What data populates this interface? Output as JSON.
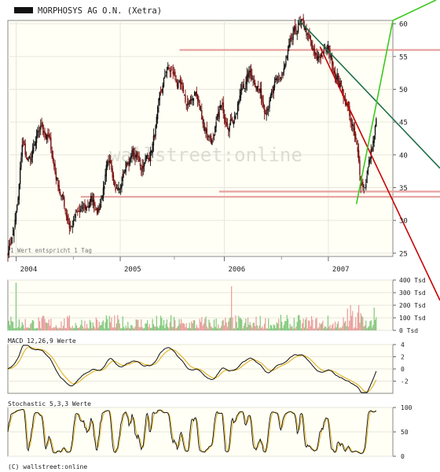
{
  "chart_data": [
    {
      "type": "line",
      "title": "MORPHOSYS AG O.N. (Xetra)",
      "subtitle": "1 Wert entspricht 1 Tag",
      "watermark": "wallstreet:online",
      "x_tick_labels": [
        "2004",
        "2005",
        "2006",
        "2007"
      ],
      "y_tick_labels": [
        "25",
        "30",
        "35",
        "40",
        "45",
        "50",
        "55",
        "60"
      ],
      "ylim": [
        24.5,
        60.5
      ],
      "grid": true,
      "series_points": {
        "x": [
          2003.92,
          2003.97,
          2004.02,
          2004.06,
          2004.12,
          2004.18,
          2004.25,
          2004.32,
          2004.38,
          2004.45,
          2004.52,
          2004.58,
          2004.65,
          2004.72,
          2004.8,
          2004.87,
          2004.94,
          2005.0,
          2005.05,
          2005.12,
          2005.2,
          2005.28,
          2005.33,
          2005.38,
          2005.45,
          2005.52,
          2005.6,
          2005.66,
          2005.72,
          2005.76,
          2005.82,
          2005.9,
          2005.96,
          2006.0,
          2006.06,
          2006.12,
          2006.18,
          2006.25,
          2006.32,
          2006.38,
          2006.45,
          2006.52,
          2006.58,
          2006.65,
          2006.72,
          2006.78,
          2006.84,
          2006.88,
          2006.94,
          2007.0,
          2007.06,
          2007.12,
          2007.18,
          2007.22,
          2007.27,
          2007.31,
          2007.35,
          2007.38,
          2007.42,
          2007.46
        ],
        "y": [
          25.5,
          28.0,
          33.0,
          42.0,
          38.5,
          41.0,
          44.5,
          42.0,
          37.0,
          33.0,
          29.0,
          30.5,
          31.5,
          33.0,
          32.0,
          38.0,
          36.5,
          35.0,
          38.5,
          40.0,
          38.5,
          40.0,
          43.0,
          48.0,
          53.0,
          52.0,
          49.0,
          47.0,
          50.0,
          47.0,
          44.0,
          42.0,
          47.0,
          46.0,
          45.5,
          47.0,
          50.5,
          52.5,
          51.0,
          47.5,
          49.0,
          51.0,
          53.0,
          57.0,
          59.5,
          59.0,
          56.0,
          54.0,
          55.5,
          56.0,
          53.0,
          50.5,
          48.0,
          45.0,
          41.0,
          36.0,
          35.5,
          38.0,
          41.0,
          45.0
        ]
      },
      "horizontal_lines": [
        56.0,
        34.4,
        33.6
      ],
      "trend_lines": [
        {
          "color": "#c80000",
          "x": [
            2006.92,
            2007.62
          ],
          "y": [
            56.5,
            33.0
          ]
        },
        {
          "color": "#1e6e4a",
          "x": [
            2006.72,
            2007.62
          ],
          "y": [
            60.5,
            45.5
          ]
        },
        {
          "color": "#3cc81e",
          "x": [
            2007.27,
            2007.62
          ],
          "y": [
            32.5,
            60.5
          ]
        }
      ],
      "colors": {
        "background": "#fffff5",
        "grid": "#e6e6dc",
        "candle_up": "#111111",
        "candle_down": "#7a1010",
        "resistance": "#e6a0a0"
      }
    },
    {
      "type": "bar",
      "title": "Volume",
      "y_tick_labels": [
        "400 Tsd",
        "300 Tsd",
        "200 Tsd",
        "100 Tsd",
        "0 Tsd"
      ],
      "ylim": [
        0,
        400
      ],
      "colors": {
        "up": "#7fc77a",
        "down": "#e89a9a"
      }
    },
    {
      "type": "line",
      "title": "MACD 12,26,9 Werte",
      "y_tick_labels": [
        "4",
        "2",
        "0",
        "-2"
      ],
      "ylim": [
        -4,
        4
      ],
      "series": [
        {
          "color": "#111111"
        },
        {
          "color": "#e0b020"
        }
      ]
    },
    {
      "type": "line",
      "title": "Stochastic 5,3,3 Werte",
      "y_tick_labels": [
        "100",
        "50",
        "0"
      ],
      "ylim": [
        0,
        100
      ],
      "series": [
        {
          "color": "#111111"
        },
        {
          "color": "#e0b020"
        }
      ]
    }
  ],
  "footer": "(C) wallstreet:online"
}
